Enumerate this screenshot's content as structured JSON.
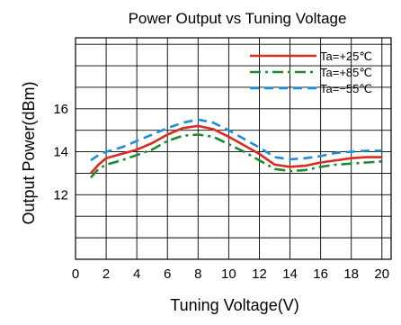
{
  "chart_data": {
    "type": "line",
    "title": "Power  Output vs Tuning Voltage",
    "xlabel": "Tuning Voltage(V)",
    "ylabel": "Output Power(dBm)",
    "xlim": [
      0,
      20.6
    ],
    "ylim": [
      9.0,
      19.3
    ],
    "x_ticks": [
      0,
      2,
      4,
      6,
      8,
      10,
      12,
      14,
      16,
      18,
      20
    ],
    "y_ticks": [
      12,
      14,
      16
    ],
    "grid": true,
    "legend": {
      "position": "top-right"
    },
    "series": [
      {
        "name": "Ta=+25℃",
        "color": "#d92b1f",
        "dash": "solid",
        "x": [
          1.0,
          1.5,
          2.0,
          3.0,
          4.0,
          5.0,
          6.0,
          7.0,
          8.0,
          9.0,
          10.0,
          11.0,
          12.0,
          13.0,
          14.0,
          15.0,
          16.0,
          17.0,
          18.0,
          19.0,
          20.0
        ],
        "y": [
          13.0,
          13.4,
          13.7,
          13.9,
          14.1,
          14.4,
          14.8,
          15.1,
          15.2,
          15.05,
          14.7,
          14.3,
          13.9,
          13.4,
          13.3,
          13.35,
          13.5,
          13.6,
          13.7,
          13.75,
          13.75
        ]
      },
      {
        "name": "Ta=+85℃",
        "color": "#1e8a2e",
        "dash": "dashdot",
        "x": [
          1.0,
          1.5,
          2.0,
          3.0,
          4.0,
          5.0,
          6.0,
          7.0,
          8.0,
          9.0,
          10.0,
          11.0,
          12.0,
          13.0,
          14.0,
          15.0,
          16.0,
          17.0,
          18.0,
          19.0,
          20.0
        ],
        "y": [
          12.8,
          13.2,
          13.4,
          13.6,
          13.85,
          14.1,
          14.5,
          14.75,
          14.8,
          14.7,
          14.35,
          14.0,
          13.6,
          13.2,
          13.1,
          13.15,
          13.3,
          13.4,
          13.45,
          13.5,
          13.55
        ]
      },
      {
        "name": "Ta=−55℃",
        "color": "#1a8fd8",
        "dash": "dashed",
        "x": [
          1.0,
          1.5,
          2.0,
          3.0,
          4.0,
          5.0,
          6.0,
          7.0,
          8.0,
          9.0,
          10.0,
          11.0,
          12.0,
          13.0,
          14.0,
          15.0,
          16.0,
          17.0,
          18.0,
          19.0,
          20.0
        ],
        "y": [
          13.6,
          13.85,
          14.0,
          14.2,
          14.5,
          14.8,
          15.1,
          15.35,
          15.5,
          15.35,
          15.0,
          14.6,
          14.2,
          13.75,
          13.65,
          13.7,
          13.8,
          13.95,
          14.0,
          14.05,
          14.05
        ]
      }
    ]
  }
}
